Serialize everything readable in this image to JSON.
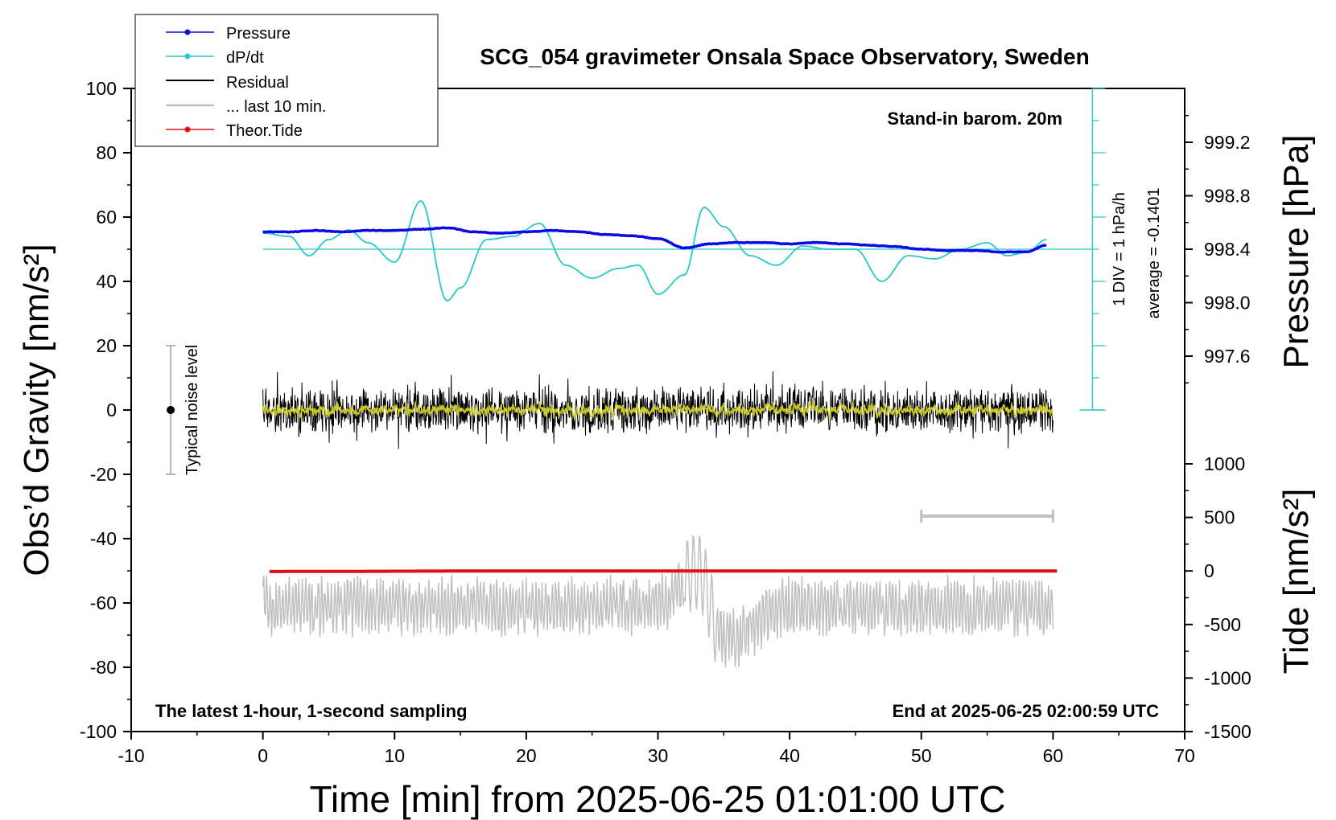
{
  "chart_data": {
    "type": "line",
    "title": "SCG_054 gravimeter Onsala Space Observatory, Sweden",
    "xlabel": "Time [min] from 2025-06-25 01:01:00 UTC",
    "ylabel_left": "Obs’d Gravity [nm/s²]",
    "ylabel_right_top": "Pressure [hPa]",
    "ylabel_right_bottom": "Tide [nm/s²]",
    "xlim": [
      -10,
      70
    ],
    "ylim_left": [
      -100,
      100
    ],
    "x_ticks": [
      -10,
      0,
      10,
      20,
      30,
      40,
      50,
      60,
      70
    ],
    "y_ticks_left": [
      100,
      80,
      60,
      40,
      20,
      0,
      -20,
      -40,
      -60,
      -80,
      -100
    ],
    "pressure_ticks": [
      "999.2",
      "998.8",
      "998.4",
      "998.0",
      "997.6"
    ],
    "tide_ticks": [
      "1000",
      "500",
      "0",
      "-500",
      "-1000",
      "-1500"
    ],
    "annotations": {
      "barometer": "Stand-in barom. 20m",
      "div_note": "1 DIV = 1 hPa/h",
      "average_note": "average = -0.1401",
      "noise_label": "Typical noise level",
      "bottom_left": "The latest 1-hour, 1-second sampling",
      "bottom_right": "End at 2025-06-25 02:00:59 UTC"
    },
    "legend": [
      "Pressure",
      "dP/dt",
      "Residual",
      "... last 10 min.",
      "Theor.Tide"
    ],
    "legend_placement": "top-left, outside",
    "colors": {
      "pressure": "#0a0ae6",
      "dpdt": "#26c8c8",
      "residual": "#000000",
      "residual_smooth": "#c8c81e",
      "last10": "#c0c0c0",
      "tide": "#e01010",
      "noise_bar": "#b4b4b4"
    },
    "series": [
      {
        "name": "Pressure",
        "axis": "pressure_hPa",
        "x": [
          0,
          2,
          4,
          6,
          8,
          10,
          12,
          14,
          16,
          18,
          20,
          22,
          24,
          26,
          28,
          30,
          32,
          34,
          36,
          38,
          40,
          42,
          44,
          46,
          48,
          50,
          52,
          54,
          56,
          58,
          59.5
        ],
        "y": [
          998.53,
          998.53,
          998.54,
          998.53,
          998.54,
          998.54,
          998.55,
          998.56,
          998.53,
          998.52,
          998.53,
          998.54,
          998.53,
          998.51,
          998.5,
          998.48,
          998.41,
          998.44,
          998.45,
          998.45,
          998.44,
          998.45,
          998.44,
          998.43,
          998.42,
          998.4,
          998.39,
          998.39,
          998.38,
          998.38,
          998.43
        ]
      },
      {
        "name": "dP/dt",
        "axis": "gravity_left",
        "x": [
          0,
          2,
          3.5,
          5,
          6.5,
          8,
          10,
          12,
          14,
          15,
          17,
          19,
          21,
          23,
          25,
          27,
          28.5,
          30,
          32,
          33.5,
          35,
          37,
          39,
          41,
          43,
          45,
          47,
          49,
          51,
          53,
          55,
          56.5,
          58,
          59.5
        ],
        "y": [
          55,
          54,
          48,
          53,
          56,
          52,
          46,
          65,
          34,
          38,
          53,
          54,
          58,
          45,
          41,
          44,
          45,
          36,
          42,
          63,
          57,
          48,
          45,
          51,
          50,
          50,
          40,
          48,
          47,
          50,
          52,
          48,
          49,
          53
        ]
      },
      {
        "name": "Residual",
        "axis": "gravity_left",
        "note": "1-second residual, noisy around 0 with amplitude about ±10 nm/s²",
        "x": [
          0,
          10,
          20,
          30,
          40,
          50,
          55,
          60
        ],
        "y": [
          0,
          0,
          0,
          0,
          0,
          0,
          0,
          0
        ]
      },
      {
        "name": "... last 10 min.",
        "axis": "gravity_left",
        "note": "grey trace, x from 50 to 60 min",
        "x": [
          50,
          60
        ],
        "y": [
          -33,
          -33
        ]
      },
      {
        "name": "Theor.Tide",
        "axis": "tide",
        "x": [
          0,
          20,
          40,
          60
        ],
        "y": [
          -5,
          0,
          0,
          0
        ]
      },
      {
        "name": "grey trace",
        "axis": "gravity_left",
        "note": "oscillating grey trace around -60, amplitude about ±8, peak near 33 min",
        "x": [
          0,
          10,
          20,
          30,
          33,
          35,
          40,
          50,
          60
        ],
        "y": [
          -61,
          -61,
          -61,
          -61,
          -50,
          -72,
          -61,
          -61,
          -61
        ]
      }
    ],
    "noise_level": {
      "x": -7,
      "center": 0,
      "low": -20,
      "high": 20
    }
  }
}
